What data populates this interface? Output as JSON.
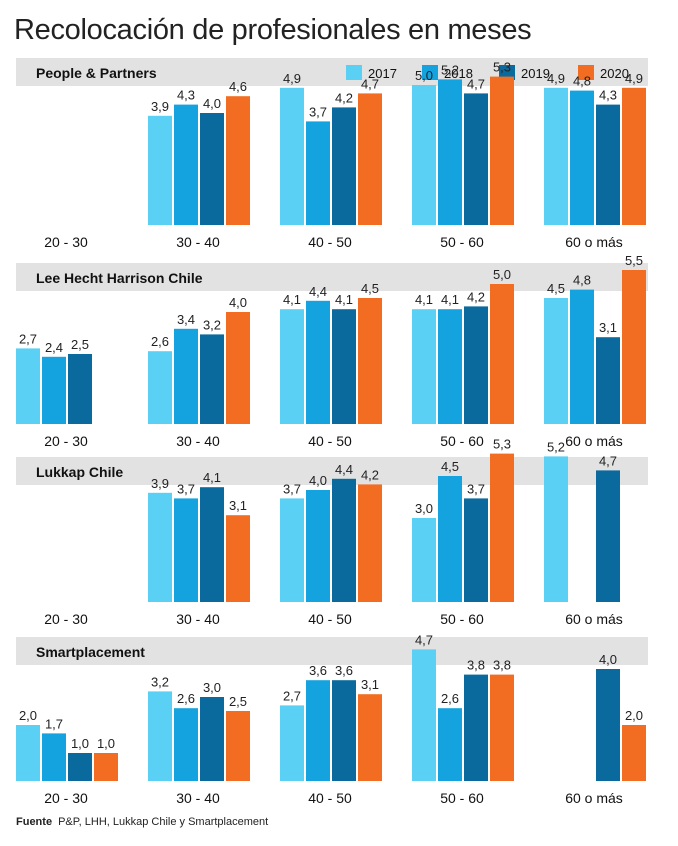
{
  "title": "Recolocación de profesionales en meses",
  "source": {
    "label": "Fuente",
    "text": "P&P, LHH, Lukkap Chile y Smartplacement"
  },
  "colors": {
    "2017": "#5bd0f5",
    "2018": "#14a3de",
    "2019": "#0a6a9d",
    "2020": "#f26d21",
    "band": "#e2e2e2"
  },
  "chart_data": {
    "type": "bar",
    "categories": [
      "20 - 30",
      "30 - 40",
      "40 - 50",
      "50 - 60",
      "60 o más"
    ],
    "legend": [
      "2017",
      "2018",
      "2019",
      "2020"
    ],
    "legend_position": "top-right",
    "panels": [
      {
        "name": "People & Partners",
        "series": [
          {
            "name": "2017",
            "values": [
              null,
              3.9,
              4.9,
              5.0,
              4.9
            ]
          },
          {
            "name": "2018",
            "values": [
              null,
              4.3,
              3.7,
              5.2,
              4.8
            ]
          },
          {
            "name": "2019",
            "values": [
              null,
              4.0,
              4.2,
              4.7,
              4.3
            ]
          },
          {
            "name": "2020",
            "values": [
              null,
              4.6,
              4.7,
              5.3,
              4.9
            ]
          }
        ]
      },
      {
        "name": "Lee Hecht Harrison Chile",
        "series": [
          {
            "name": "2017",
            "values": [
              2.7,
              2.6,
              4.1,
              4.1,
              4.5
            ]
          },
          {
            "name": "2018",
            "values": [
              2.4,
              3.4,
              4.4,
              4.1,
              4.8
            ]
          },
          {
            "name": "2019",
            "values": [
              2.5,
              3.2,
              4.1,
              4.2,
              3.1
            ]
          },
          {
            "name": "2020",
            "values": [
              null,
              4.0,
              4.5,
              5.0,
              5.5
            ]
          }
        ]
      },
      {
        "name": "Lukkap Chile",
        "series": [
          {
            "name": "2017",
            "values": [
              null,
              3.9,
              3.7,
              3.0,
              5.2
            ]
          },
          {
            "name": "2018",
            "values": [
              null,
              3.7,
              4.0,
              4.5,
              null
            ]
          },
          {
            "name": "2019",
            "values": [
              null,
              4.1,
              4.4,
              3.7,
              4.7
            ]
          },
          {
            "name": "2020",
            "values": [
              null,
              3.1,
              4.2,
              5.3,
              null
            ]
          }
        ]
      },
      {
        "name": "Smartplacement",
        "series": [
          {
            "name": "2017",
            "values": [
              2.0,
              3.2,
              2.7,
              4.7,
              null
            ]
          },
          {
            "name": "2018",
            "values": [
              1.7,
              2.6,
              3.6,
              2.6,
              null
            ]
          },
          {
            "name": "2019",
            "values": [
              1.0,
              3.0,
              3.6,
              3.8,
              4.0
            ]
          },
          {
            "name": "2020",
            "values": [
              1.0,
              2.5,
              3.1,
              3.8,
              2.0
            ]
          }
        ]
      }
    ]
  }
}
